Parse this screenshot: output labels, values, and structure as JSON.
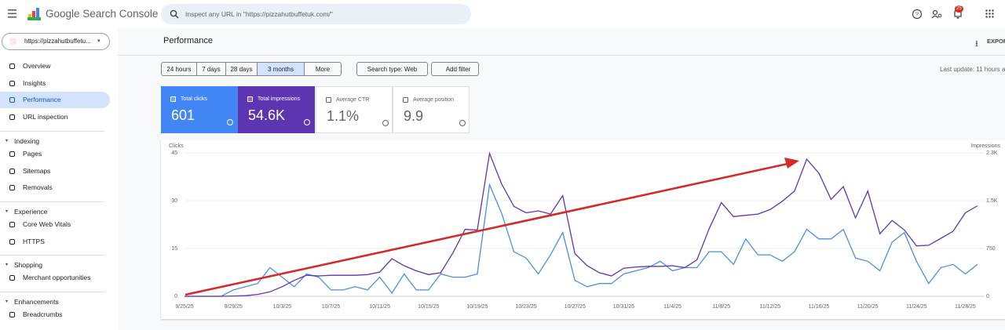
{
  "header": {
    "product": "Google Search Console",
    "search_placeholder": "Inspect any URL in \"https://pizzahutbuffetuk.com/\"",
    "notification_count": "25"
  },
  "sidebar": {
    "property": "https://pizzahutbuffetu...",
    "nav": [
      "Overview",
      "Insights",
      "Performance",
      "URL inspection"
    ],
    "groups": [
      {
        "heading": "Indexing",
        "items": [
          "Pages",
          "Sitemaps",
          "Removals"
        ]
      },
      {
        "heading": "Experience",
        "items": [
          "Core Web Vitals",
          "HTTPS"
        ]
      },
      {
        "heading": "Shopping",
        "items": [
          "Merchant opportunities"
        ]
      },
      {
        "heading": "Enhancements",
        "items": [
          "Breadcrumbs"
        ]
      }
    ]
  },
  "page": {
    "title": "Performance",
    "export": "EXPOR",
    "date_ranges": [
      "24 hours",
      "7 days",
      "28 days",
      "3 months",
      "More"
    ],
    "search_type": "Search type: Web",
    "add_filter": "Add filter",
    "last_update": "Last update: 11 hours a"
  },
  "metrics": [
    {
      "label": "Total clicks",
      "value": "601"
    },
    {
      "label": "Total impressions",
      "value": "54.6K"
    },
    {
      "label": "Average CTR",
      "value": "1.1%"
    },
    {
      "label": "Average position",
      "value": "9.9"
    }
  ],
  "chart_data": {
    "type": "line",
    "ylabel": "Clicks",
    "y2label": "Impressions",
    "categories": [
      "9/25/25",
      null,
      null,
      null,
      "9/29/25",
      null,
      null,
      null,
      "10/3/25",
      null,
      null,
      null,
      "10/7/25",
      null,
      null,
      null,
      "10/11/25",
      null,
      null,
      null,
      "10/15/25",
      null,
      null,
      null,
      "10/19/25",
      null,
      null,
      null,
      "10/23/25",
      null,
      null,
      null,
      "10/27/25",
      null,
      null,
      null,
      "10/31/25",
      null,
      null,
      null,
      "11/4/25",
      null,
      null,
      null,
      "11/8/25",
      null,
      null,
      null,
      "11/12/25",
      null,
      null,
      null,
      "11/16/25",
      null,
      null,
      null,
      "11/20/25",
      null,
      null,
      null,
      "11/24/25",
      null,
      null,
      null,
      "11/28/25",
      null
    ],
    "series": [
      {
        "color": "#4a8fe0",
        "values": [
          0,
          0,
          0,
          0,
          2,
          3,
          4,
          9,
          6,
          3,
          7,
          6,
          2,
          2,
          3,
          2,
          6,
          1,
          7,
          2,
          2,
          7,
          6,
          6,
          7,
          35,
          26,
          14,
          12,
          7,
          13,
          20,
          5,
          3,
          4,
          4,
          7,
          8,
          9,
          11,
          8,
          9,
          9,
          14,
          14,
          10,
          18,
          13,
          13,
          11,
          14,
          21,
          18,
          18,
          21,
          12,
          11,
          8,
          17,
          20,
          11,
          4,
          9,
          10,
          7,
          10
        ]
      },
      {
        "color": "#5e35b1",
        "axis": "y2",
        "values": [
          0,
          0,
          0,
          0,
          5,
          10,
          30,
          70,
          150,
          250,
          330,
          320,
          330,
          330,
          330,
          340,
          380,
          590,
          480,
          400,
          340,
          370,
          680,
          1050,
          1040,
          2240,
          1760,
          1410,
          1310,
          1340,
          1290,
          1580,
          670,
          480,
          370,
          320,
          440,
          460,
          470,
          470,
          480,
          450,
          570,
          1060,
          1470,
          1250,
          1270,
          1290,
          1360,
          1490,
          1650,
          2150,
          1930,
          1520,
          1720,
          1230,
          1650,
          980,
          1190,
          1040,
          790,
          800,
          910,
          1020,
          1310,
          1420
        ]
      }
    ],
    "ylim": [
      0,
      45
    ],
    "yticks": [
      0,
      15,
      30,
      45
    ],
    "y2lim": [
      0,
      2250
    ],
    "y2ticks": [
      0,
      750,
      {
        "value": 1500,
        "label": "1.5K"
      },
      {
        "value": 2250,
        "label": "2.3K"
      }
    ],
    "grid": true
  }
}
